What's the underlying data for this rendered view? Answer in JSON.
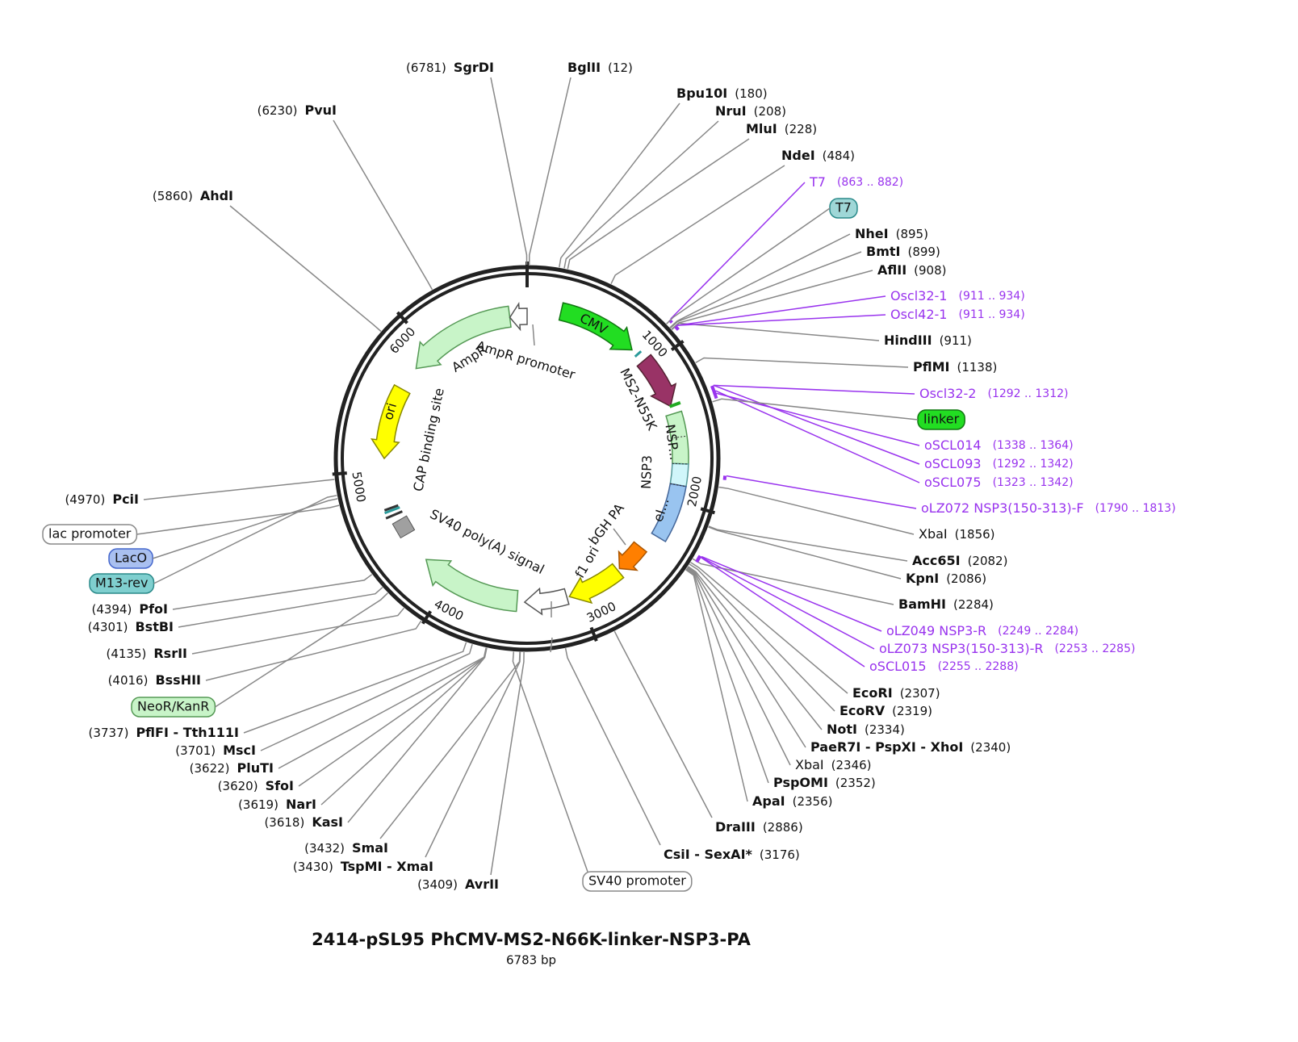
{
  "title": "2414-pSL95 PhCMV-MS2-N66K-linker-NSP3-PA",
  "length": {
    "value": 6783,
    "label": "6783 bp"
  },
  "ticks": [
    1000,
    2000,
    3000,
    4000,
    5000,
    6000
  ],
  "features": [
    "CMV",
    "MS2-N55K",
    "NSP...",
    "eI...",
    "NSP3",
    "bGH PA",
    "f1 ori",
    "SV40 poly(A) signal",
    "AmpR",
    "AmpR promoter",
    "ori",
    "CAP binding site"
  ],
  "boxes": [
    "T7",
    "linker",
    "lac promoter",
    "LacO",
    "M13-rev",
    "NeoR/KanR",
    "SV40 promoter"
  ],
  "sites": [
    {
      "name": "SgrDI",
      "site": {
        "value": 6781,
        "label": "(6781)"
      }
    },
    {
      "name": "BglII",
      "site": {
        "value": 12,
        "label": "(12)"
      }
    },
    {
      "name": "Bpu10I",
      "site": {
        "value": 180,
        "label": "(180)"
      }
    },
    {
      "name": "NruI",
      "site": {
        "value": 208,
        "label": "(208)"
      }
    },
    {
      "name": "MluI",
      "site": {
        "value": 228,
        "label": "(228)"
      }
    },
    {
      "name": "NdeI",
      "site": {
        "value": 484,
        "label": "(484)"
      }
    },
    {
      "name": "NheI",
      "site": {
        "value": 895,
        "label": "(895)"
      }
    },
    {
      "name": "BmtI",
      "site": {
        "value": 899,
        "label": "(899)"
      }
    },
    {
      "name": "AflII",
      "site": {
        "value": 908,
        "label": "(908)"
      }
    },
    {
      "name": "HindIII",
      "site": {
        "value": 911,
        "label": "(911)"
      }
    },
    {
      "name": "PflMI",
      "site": {
        "value": 1138,
        "label": "(1138)"
      }
    },
    {
      "name": "XbaI",
      "site": {
        "value": 1856,
        "label": "(1856)"
      }
    },
    {
      "name": "Acc65I",
      "site": {
        "value": 2082,
        "label": "(2082)"
      }
    },
    {
      "name": "KpnI",
      "site": {
        "value": 2086,
        "label": "(2086)"
      }
    },
    {
      "name": "BamHI",
      "site": {
        "value": 2284,
        "label": "(2284)"
      }
    },
    {
      "name": "EcoRI",
      "site": {
        "value": 2307,
        "label": "(2307)"
      }
    },
    {
      "name": "EcoRV",
      "site": {
        "value": 2319,
        "label": "(2319)"
      }
    },
    {
      "name": "NotI",
      "site": {
        "value": 2334,
        "label": "(2334)"
      }
    },
    {
      "name": "PaeR7I - PspXI - XhoI",
      "site": {
        "value": 2340,
        "label": "(2340)"
      }
    },
    {
      "name": "XbaI",
      "site": {
        "value": 2346,
        "label": "(2346)"
      }
    },
    {
      "name": "PspOMI",
      "site": {
        "value": 2352,
        "label": "(2352)"
      }
    },
    {
      "name": "ApaI",
      "site": {
        "value": 2356,
        "label": "(2356)"
      }
    },
    {
      "name": "DraIII",
      "site": {
        "value": 2886,
        "label": "(2886)"
      }
    },
    {
      "name": "CsiI - SexAI*",
      "site": {
        "value": 3176,
        "label": "(3176)"
      }
    },
    {
      "name": "AvrII",
      "site": {
        "value": 3409,
        "label": "(3409)"
      }
    },
    {
      "name": "TspMI - XmaI",
      "site": {
        "value": 3430,
        "label": "(3430)"
      }
    },
    {
      "name": "SmaI",
      "site": {
        "value": 3432,
        "label": "(3432)"
      }
    },
    {
      "name": "KasI",
      "site": {
        "value": 3618,
        "label": "(3618)"
      }
    },
    {
      "name": "NarI",
      "site": {
        "value": 3619,
        "label": "(3619)"
      }
    },
    {
      "name": "SfoI",
      "site": {
        "value": 3620,
        "label": "(3620)"
      }
    },
    {
      "name": "PluTI",
      "site": {
        "value": 3622,
        "label": "(3622)"
      }
    },
    {
      "name": "MscI",
      "site": {
        "value": 3701,
        "label": "(3701)"
      }
    },
    {
      "name": "PflFI - Tth111I",
      "site": {
        "value": 3737,
        "label": "(3737)"
      }
    },
    {
      "name": "BssHII",
      "site": {
        "value": 4016,
        "label": "(4016)"
      }
    },
    {
      "name": "RsrII",
      "site": {
        "value": 4135,
        "label": "(4135)"
      }
    },
    {
      "name": "BstBI",
      "site": {
        "value": 4301,
        "label": "(4301)"
      }
    },
    {
      "name": "PfoI",
      "site": {
        "value": 4394,
        "label": "(4394)"
      }
    },
    {
      "name": "PciI",
      "site": {
        "value": 4970,
        "label": "(4970)"
      }
    },
    {
      "name": "AhdI",
      "site": {
        "value": 5860,
        "label": "(5860)"
      }
    },
    {
      "name": "PvuI",
      "site": {
        "value": 6230,
        "label": "(6230)"
      }
    }
  ],
  "primers": [
    {
      "name": "T7",
      "range": {
        "start": 863,
        "end": 882,
        "label": "(863 .. 882)"
      }
    },
    {
      "name": "Oscl32-1",
      "range": {
        "start": 911,
        "end": 934,
        "label": "(911 .. 934)"
      }
    },
    {
      "name": "Oscl42-1",
      "range": {
        "start": 911,
        "end": 934,
        "label": "(911 .. 934)"
      }
    },
    {
      "name": "Oscl32-2",
      "range": {
        "start": 1292,
        "end": 1312,
        "label": "(1292 .. 1312)"
      }
    },
    {
      "name": "oSCL014",
      "range": {
        "start": 1338,
        "end": 1364,
        "label": "(1338 .. 1364)"
      }
    },
    {
      "name": "oSCL093",
      "range": {
        "start": 1292,
        "end": 1342,
        "label": "(1292 .. 1342)"
      }
    },
    {
      "name": "oSCL075",
      "range": {
        "start": 1323,
        "end": 1342,
        "label": "(1323 .. 1342)"
      }
    },
    {
      "name": "oLZ072 NSP3(150-313)-F",
      "range": {
        "start": 1790,
        "end": 1813,
        "label": "(1790 .. 1813)"
      }
    },
    {
      "name": "oLZ049 NSP3-R",
      "range": {
        "start": 2249,
        "end": 2284,
        "label": "(2249 .. 2284)"
      }
    },
    {
      "name": "oLZ073 NSP3(150-313)-R",
      "range": {
        "start": 2253,
        "end": 2285,
        "label": "(2253 .. 2285)"
      }
    },
    {
      "name": "oSCL015",
      "range": {
        "start": 2255,
        "end": 2288,
        "label": "(2255 .. 2288)"
      }
    }
  ]
}
